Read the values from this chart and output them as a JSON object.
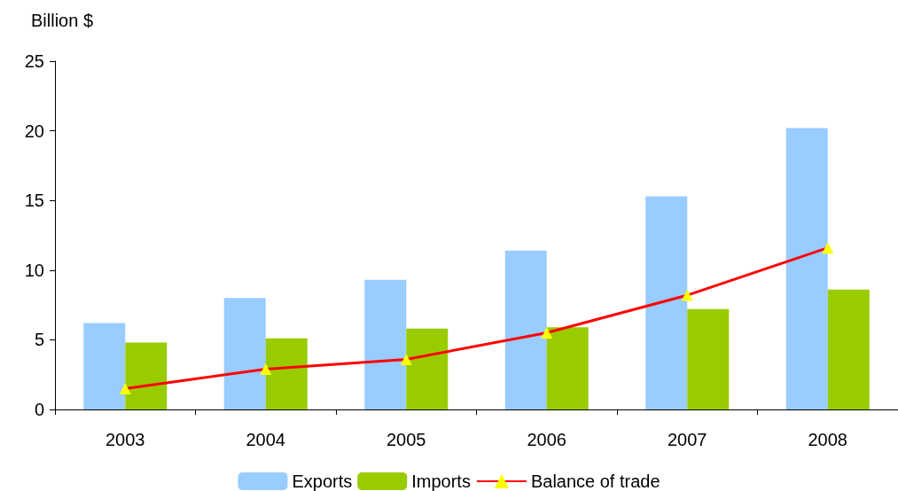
{
  "chart_data": {
    "type": "bar",
    "ylabel": "Billion $",
    "categories": [
      "2003",
      "2004",
      "2005",
      "2006",
      "2007",
      "2008"
    ],
    "series": [
      {
        "name": "Exports",
        "color": "#99ccff",
        "values": [
          6.2,
          8.0,
          9.3,
          11.4,
          15.3,
          20.2
        ]
      },
      {
        "name": "Imports",
        "color": "#99cc00",
        "values": [
          4.8,
          5.1,
          5.8,
          5.9,
          7.2,
          8.6
        ]
      },
      {
        "name": "Balance of trade",
        "type": "line",
        "color": "#ff0000",
        "marker": "triangle",
        "values": [
          1.5,
          2.9,
          3.6,
          5.5,
          8.2,
          11.6
        ]
      }
    ],
    "ylim": [
      0,
      25
    ],
    "yticks": [
      0,
      5,
      10,
      15,
      20,
      25
    ],
    "grid": false,
    "legend": "bottom"
  }
}
